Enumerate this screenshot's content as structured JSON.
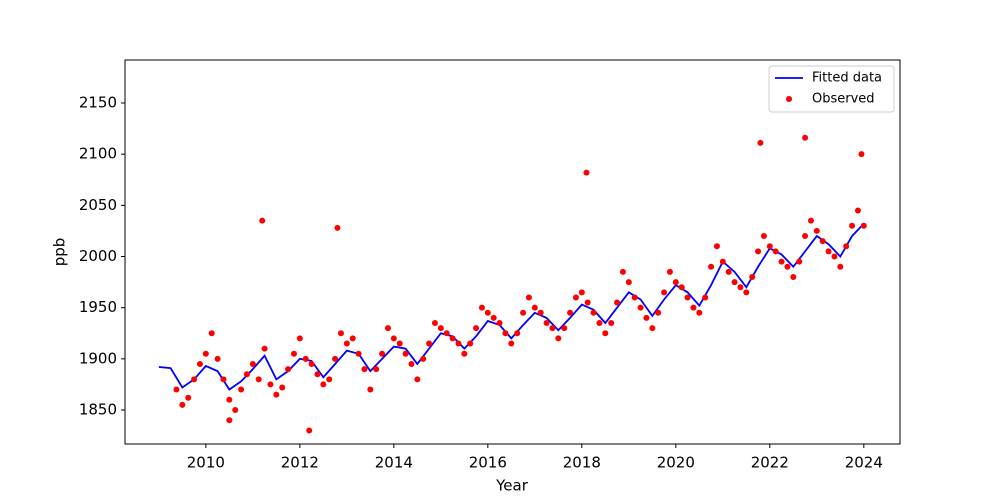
{
  "chart_data": {
    "type": "scatter",
    "xlabel": "Year",
    "ylabel": "ppb",
    "xlim": [
      2008.28,
      2024.77
    ],
    "ylim": [
      1816.8,
      2192
    ],
    "xticks": [
      2010,
      2012,
      2014,
      2016,
      2018,
      2020,
      2022,
      2024
    ],
    "yticks": [
      1850,
      1900,
      1950,
      2000,
      2050,
      2100,
      2150
    ],
    "grid": false,
    "legend": "upper right",
    "series": [
      {
        "name": "Fitted data",
        "type": "line",
        "color": "#0000ff",
        "x": [
          2009,
          2009.25,
          2009.5,
          2009.75,
          2010,
          2010.25,
          2010.5,
          2010.75,
          2011,
          2011.25,
          2011.5,
          2011.75,
          2012,
          2012.25,
          2012.5,
          2012.75,
          2013,
          2013.25,
          2013.5,
          2013.75,
          2014,
          2014.25,
          2014.5,
          2014.75,
          2015,
          2015.25,
          2015.5,
          2015.75,
          2016,
          2016.25,
          2016.5,
          2016.75,
          2017,
          2017.25,
          2017.5,
          2017.75,
          2018,
          2018.25,
          2018.5,
          2018.75,
          2019,
          2019.25,
          2019.5,
          2019.75,
          2020,
          2020.25,
          2020.5,
          2020.75,
          2021,
          2021.25,
          2021.5,
          2021.75,
          2022,
          2022.25,
          2022.5,
          2022.75,
          2023,
          2023.25,
          2023.5,
          2023.75,
          2024
        ],
        "values": [
          1892,
          1891,
          1872,
          1880,
          1893,
          1888,
          1870,
          1878,
          1890,
          1903,
          1880,
          1888,
          1900,
          1898,
          1882,
          1895,
          1908,
          1905,
          1888,
          1900,
          1912,
          1910,
          1895,
          1910,
          1925,
          1922,
          1910,
          1922,
          1937,
          1933,
          1920,
          1933,
          1945,
          1940,
          1928,
          1940,
          1953,
          1948,
          1935,
          1950,
          1965,
          1958,
          1942,
          1958,
          1972,
          1965,
          1952,
          1972,
          1995,
          1985,
          1970,
          1990,
          2008,
          2002,
          1990,
          2005,
          2020,
          2012,
          2000,
          2020,
          2032
        ]
      },
      {
        "name": "Observed",
        "type": "scatter",
        "color": "#ff0000",
        "x": [
          2009.375,
          2009.5,
          2009.625,
          2009.75,
          2009.875,
          2010,
          2010.125,
          2010.25,
          2010.375,
          2010.5,
          2010.625,
          2010.75,
          2010.875,
          2011,
          2011.125,
          2011.25,
          2011.375,
          2011.5,
          2011.625,
          2011.75,
          2011.875,
          2012,
          2012.125,
          2012.25,
          2012.375,
          2012.5,
          2012.625,
          2012.75,
          2012.875,
          2013,
          2013.125,
          2013.25,
          2013.375,
          2013.5,
          2013.625,
          2013.75,
          2013.875,
          2014,
          2014.125,
          2014.25,
          2014.375,
          2014.5,
          2014.625,
          2014.75,
          2014.875,
          2015,
          2015.125,
          2015.25,
          2015.375,
          2015.5,
          2015.625,
          2015.75,
          2015.875,
          2016,
          2016.125,
          2016.25,
          2016.375,
          2016.5,
          2016.625,
          2016.75,
          2016.875,
          2017,
          2017.125,
          2017.25,
          2017.375,
          2017.5,
          2017.625,
          2017.75,
          2017.875,
          2018,
          2018.125,
          2018.25,
          2018.375,
          2018.5,
          2018.625,
          2018.75,
          2018.875,
          2019,
          2019.125,
          2019.25,
          2019.375,
          2019.5,
          2019.625,
          2019.75,
          2019.875,
          2020,
          2020.125,
          2020.25,
          2020.375,
          2020.5,
          2020.625,
          2020.75,
          2020.875,
          2021,
          2021.125,
          2021.25,
          2021.375,
          2021.5,
          2021.625,
          2021.75,
          2021.875,
          2022,
          2022.125,
          2022.25,
          2022.375,
          2022.5,
          2022.625,
          2022.75,
          2022.875,
          2023,
          2023.125,
          2023.25,
          2023.375,
          2023.5,
          2023.625,
          2023.75,
          2023.875,
          2024,
          2011.2,
          2012.8,
          2018.1,
          2021.8,
          2022.75,
          2023.95,
          2012.2,
          2010.5
        ],
        "values": [
          1870,
          1855,
          1862,
          1880,
          1895,
          1905,
          1925,
          1900,
          1880,
          1860,
          1850,
          1870,
          1885,
          1895,
          1880,
          1910,
          1875,
          1865,
          1872,
          1890,
          1905,
          1920,
          1900,
          1895,
          1885,
          1875,
          1880,
          1900,
          1925,
          1915,
          1920,
          1905,
          1890,
          1870,
          1890,
          1905,
          1930,
          1920,
          1915,
          1905,
          1895,
          1880,
          1900,
          1915,
          1935,
          1930,
          1925,
          1920,
          1915,
          1905,
          1915,
          1930,
          1950,
          1945,
          1940,
          1935,
          1925,
          1915,
          1925,
          1945,
          1960,
          1950,
          1945,
          1935,
          1930,
          1920,
          1930,
          1945,
          1960,
          1965,
          1955,
          1945,
          1935,
          1925,
          1935,
          1955,
          1985,
          1975,
          1960,
          1950,
          1940,
          1930,
          1945,
          1965,
          1985,
          1975,
          1970,
          1960,
          1950,
          1945,
          1960,
          1990,
          2010,
          1995,
          1985,
          1975,
          1970,
          1965,
          1980,
          2005,
          2020,
          2010,
          2005,
          1995,
          1990,
          1980,
          1995,
          2020,
          2035,
          2025,
          2015,
          2005,
          2000,
          1990,
          2010,
          2030,
          2045,
          2030,
          2035,
          2028,
          2082,
          2111,
          2116,
          2100,
          1830,
          1840
        ]
      }
    ]
  }
}
